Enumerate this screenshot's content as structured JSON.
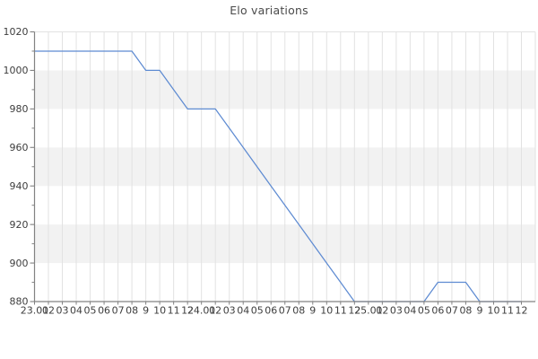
{
  "title": "Elo variations",
  "chart_data": {
    "type": "line",
    "title": "Elo variations",
    "xlabel": "",
    "ylabel": "",
    "grid": true,
    "legend": false,
    "ylim": [
      880,
      1020
    ],
    "ytick_step": 20,
    "yminor_step": 10,
    "ytick_labels": [
      "880",
      "900",
      "920",
      "940",
      "960",
      "980",
      "1000",
      "1020"
    ],
    "categories": [
      "23.01",
      "02",
      "03",
      "04",
      "05",
      "06",
      "07",
      "08",
      "9",
      "10",
      "11",
      "12",
      "24.01",
      "02",
      "03",
      "04",
      "05",
      "06",
      "07",
      "08",
      "9",
      "10",
      "11",
      "12",
      "25.01",
      "02",
      "03",
      "04",
      "05",
      "06",
      "07",
      "08",
      "9",
      "10",
      "11",
      "12"
    ],
    "values": [
      1010,
      1010,
      1010,
      1010,
      1010,
      1010,
      1010,
      1010,
      1000,
      1000,
      990,
      980,
      980,
      980,
      970,
      960,
      950,
      940,
      930,
      920,
      910,
      900,
      890,
      880,
      880,
      880,
      880,
      880,
      880,
      890,
      890,
      890,
      880,
      880,
      880,
      880
    ],
    "colors": {
      "line": "#5e8bd2",
      "band": "#f2f2f2",
      "grid": "#e2e2e2",
      "axis": "#828282",
      "text": "#3d3d3d",
      "background": "#ffffff"
    }
  }
}
